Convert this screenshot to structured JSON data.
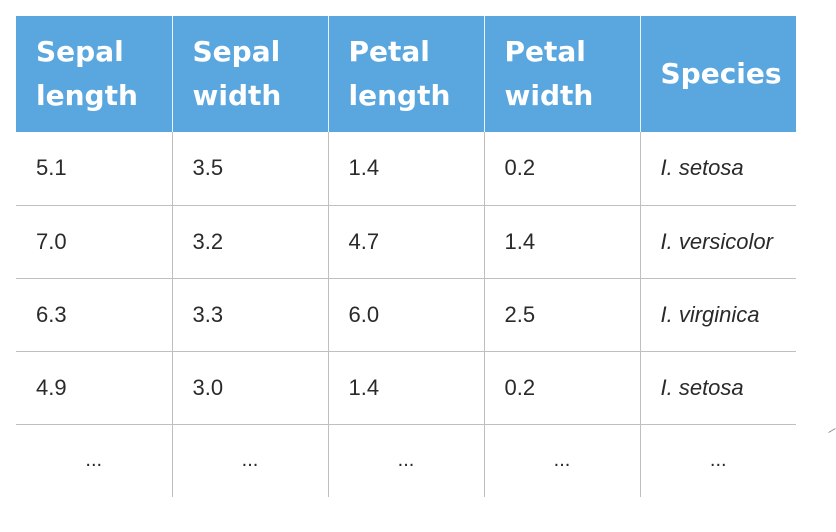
{
  "table": {
    "headers": [
      [
        "Sepal",
        "length"
      ],
      [
        "Sepal",
        "width"
      ],
      [
        "Petal",
        "length"
      ],
      [
        "Petal",
        "width"
      ],
      [
        "Species"
      ]
    ],
    "rows": [
      [
        "5.1",
        "3.5",
        "1.4",
        "0.2",
        "I. setosa"
      ],
      [
        "7.0",
        "3.2",
        "4.7",
        "1.4",
        "I. versicolor"
      ],
      [
        "6.3",
        "3.3",
        "6.0",
        "2.5",
        "I. virginica"
      ],
      [
        "4.9",
        "3.0",
        "1.4",
        "0.2",
        "I. setosa"
      ]
    ],
    "ellipsis": [
      "...",
      "...",
      "...",
      "...",
      "..."
    ]
  },
  "colors": {
    "header_bg": "#5aa7e0",
    "header_text": "#ffffff",
    "grid": "#bfbfbf"
  }
}
